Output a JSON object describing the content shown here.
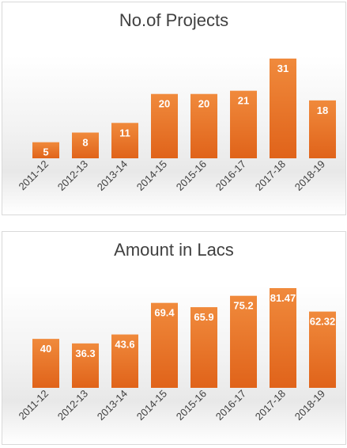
{
  "charts": {
    "colors": {
      "bar_top": "#f08a3c",
      "bar_bottom": "#e0631a"
    },
    "chart_data": [
      {
        "type": "bar",
        "title": "No.of Projects",
        "categories": [
          "2011-12",
          "2012-13",
          "2013-14",
          "2014-15",
          "2015-16",
          "2016-17",
          "2017-18",
          "2018-19"
        ],
        "values": [
          5,
          8,
          11,
          20,
          20,
          21,
          31,
          18
        ],
        "value_labels": [
          "5",
          "8",
          "11",
          "20",
          "20",
          "21",
          "31",
          "18"
        ],
        "xlabel": "",
        "ylabel": "",
        "ylim": [
          0,
          31
        ],
        "grid": false,
        "legend": "none"
      },
      {
        "type": "bar",
        "title": "Amount in Lacs",
        "categories": [
          "2011-12",
          "2012-13",
          "2013-14",
          "2014-15",
          "2015-16",
          "2016-17",
          "2017-18",
          "2018-19"
        ],
        "values": [
          40,
          36.3,
          43.6,
          69.4,
          65.9,
          75.2,
          81.47,
          62.32
        ],
        "value_labels": [
          "40",
          "36.3",
          "43.6",
          "69.4",
          "65.9",
          "75.2",
          "81.47",
          "62.32"
        ],
        "xlabel": "",
        "ylabel": "",
        "ylim": [
          0,
          81.47
        ],
        "grid": false,
        "legend": "none"
      }
    ]
  }
}
